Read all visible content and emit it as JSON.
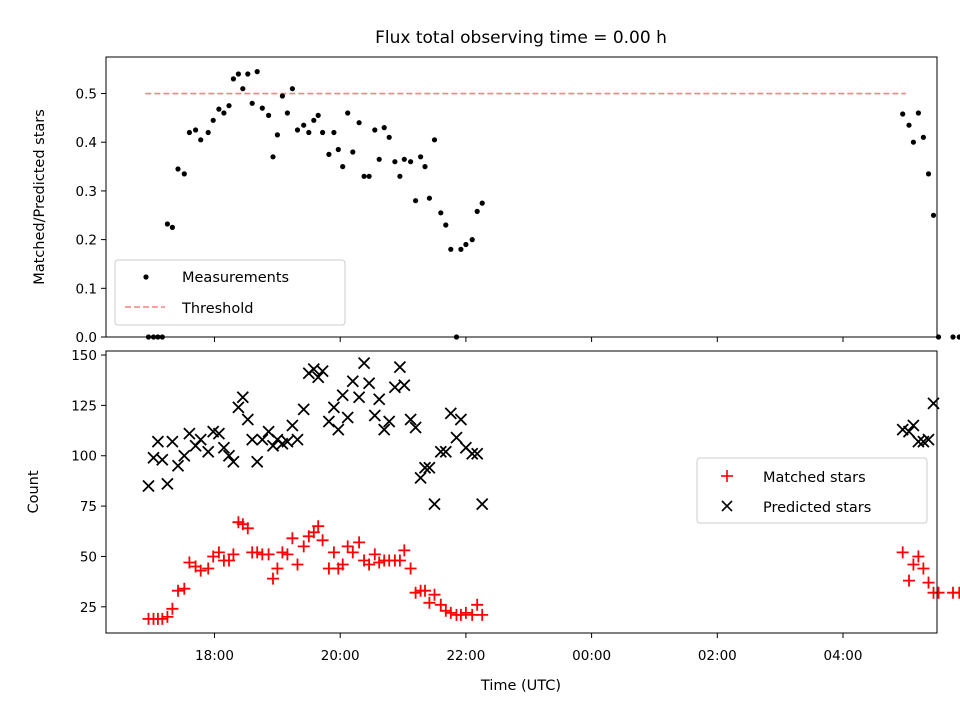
{
  "chart_data": [
    {
      "type": "scatter",
      "title": "Flux total observing time = 0.00 h",
      "xlabel": "",
      "ylabel": "Matched/Predicted stars",
      "ylim": [
        0,
        0.575
      ],
      "yticks": [
        "0.0",
        "0.1",
        "0.2",
        "0.3",
        "0.4",
        "0.5"
      ],
      "ytick_values": [
        0,
        0.1,
        0.2,
        0.3,
        0.4,
        0.5
      ],
      "x_axis": "hours since 00:00 UTC of the first night (from 17:00 to 29:00)",
      "legend_position": "lower-left",
      "legend": {
        "measurements": "Measurements",
        "threshold": "Threshold"
      },
      "threshold": {
        "value": 0.5,
        "x_range": [
          16.9,
          29.0
        ],
        "color": "#ff8080"
      },
      "measurements_color": "#000000",
      "series": [
        {
          "name": "Measurements",
          "points": [
            [
              16.95,
              0.0
            ],
            [
              17.03,
              0.0
            ],
            [
              17.1,
              0.0
            ],
            [
              17.17,
              0.0
            ],
            [
              17.25,
              0.232
            ],
            [
              17.33,
              0.225
            ],
            [
              17.42,
              0.345
            ],
            [
              17.52,
              0.335
            ],
            [
              17.6,
              0.42
            ],
            [
              17.7,
              0.425
            ],
            [
              17.78,
              0.405
            ],
            [
              17.9,
              0.42
            ],
            [
              17.98,
              0.445
            ],
            [
              18.07,
              0.468
            ],
            [
              18.15,
              0.46
            ],
            [
              18.23,
              0.475
            ],
            [
              18.3,
              0.53
            ],
            [
              18.38,
              0.54
            ],
            [
              18.45,
              0.51
            ],
            [
              18.53,
              0.54
            ],
            [
              18.6,
              0.48
            ],
            [
              18.68,
              0.545
            ],
            [
              18.76,
              0.47
            ],
            [
              18.86,
              0.455
            ],
            [
              18.93,
              0.37
            ],
            [
              19.0,
              0.415
            ],
            [
              19.08,
              0.495
            ],
            [
              19.16,
              0.46
            ],
            [
              19.24,
              0.51
            ],
            [
              19.32,
              0.425
            ],
            [
              19.42,
              0.435
            ],
            [
              19.5,
              0.42
            ],
            [
              19.58,
              0.445
            ],
            [
              19.65,
              0.455
            ],
            [
              19.72,
              0.42
            ],
            [
              19.82,
              0.375
            ],
            [
              19.9,
              0.42
            ],
            [
              19.97,
              0.385
            ],
            [
              20.04,
              0.35
            ],
            [
              20.12,
              0.46
            ],
            [
              20.2,
              0.38
            ],
            [
              20.3,
              0.44
            ],
            [
              20.38,
              0.33
            ],
            [
              20.46,
              0.33
            ],
            [
              20.55,
              0.425
            ],
            [
              20.62,
              0.365
            ],
            [
              20.7,
              0.43
            ],
            [
              20.78,
              0.41
            ],
            [
              20.87,
              0.36
            ],
            [
              20.95,
              0.33
            ],
            [
              21.02,
              0.365
            ],
            [
              21.12,
              0.36
            ],
            [
              21.2,
              0.28
            ],
            [
              21.28,
              0.37
            ],
            [
              21.35,
              0.35
            ],
            [
              21.42,
              0.285
            ],
            [
              21.5,
              0.405
            ],
            [
              21.6,
              0.255
            ],
            [
              21.68,
              0.23
            ],
            [
              21.76,
              0.18
            ],
            [
              21.85,
              0.0
            ],
            [
              21.92,
              0.18
            ],
            [
              22.0,
              0.19
            ],
            [
              22.1,
              0.2
            ],
            [
              22.18,
              0.258
            ],
            [
              22.26,
              0.275
            ],
            [
              28.95,
              0.458
            ],
            [
              29.05,
              0.435
            ],
            [
              29.12,
              0.4
            ],
            [
              29.2,
              0.46
            ],
            [
              29.28,
              0.41
            ],
            [
              29.36,
              0.335
            ],
            [
              29.44,
              0.25
            ],
            [
              29.52,
              0.0
            ],
            [
              29.75,
              0.0
            ],
            [
              29.85,
              0.0
            ],
            [
              29.95,
              0.0
            ],
            [
              30.05,
              0.0
            ],
            [
              30.1,
              0.0
            ]
          ]
        }
      ]
    },
    {
      "type": "scatter",
      "title": "",
      "xlabel": "Time (UTC)",
      "ylabel": "Count",
      "ylim": [
        12,
        152
      ],
      "yticks": [
        "25",
        "50",
        "75",
        "100",
        "125",
        "150"
      ],
      "ytick_values": [
        25,
        50,
        75,
        100,
        125,
        150
      ],
      "xticks": [
        "18:00",
        "20:00",
        "22:00",
        "00:00",
        "02:00",
        "04:00"
      ],
      "xtick_values": [
        18,
        20,
        22,
        24,
        26,
        28
      ],
      "x_axis": "hours since 00:00 UTC of the first night (from 17:00 to 29:00)",
      "legend_position": "center-right",
      "legend": {
        "matched": "Matched stars",
        "predicted": "Predicted stars"
      },
      "matched_color": "#ff0000",
      "predicted_color": "#000000",
      "series": [
        {
          "name": "Matched stars",
          "points": [
            [
              16.95,
              19
            ],
            [
              17.03,
              19
            ],
            [
              17.1,
              19
            ],
            [
              17.17,
              19
            ],
            [
              17.25,
              20
            ],
            [
              17.33,
              24
            ],
            [
              17.42,
              33
            ],
            [
              17.52,
              34
            ],
            [
              17.6,
              47
            ],
            [
              17.7,
              45
            ],
            [
              17.78,
              43
            ],
            [
              17.9,
              44
            ],
            [
              17.98,
              50
            ],
            [
              18.07,
              52
            ],
            [
              18.15,
              48
            ],
            [
              18.23,
              48
            ],
            [
              18.3,
              51
            ],
            [
              18.38,
              67
            ],
            [
              18.45,
              66
            ],
            [
              18.53,
              64
            ],
            [
              18.6,
              52
            ],
            [
              18.68,
              52
            ],
            [
              18.76,
              51
            ],
            [
              18.86,
              51
            ],
            [
              18.93,
              39
            ],
            [
              19.0,
              44
            ],
            [
              19.08,
              52
            ],
            [
              19.16,
              51
            ],
            [
              19.24,
              59
            ],
            [
              19.32,
              46
            ],
            [
              19.42,
              55
            ],
            [
              19.5,
              60
            ],
            [
              19.58,
              62
            ],
            [
              19.65,
              65
            ],
            [
              19.72,
              58
            ],
            [
              19.82,
              44
            ],
            [
              19.9,
              52
            ],
            [
              19.97,
              44
            ],
            [
              20.04,
              46
            ],
            [
              20.12,
              55
            ],
            [
              20.2,
              52
            ],
            [
              20.3,
              57
            ],
            [
              20.38,
              48
            ],
            [
              20.46,
              46
            ],
            [
              20.55,
              51
            ],
            [
              20.62,
              47
            ],
            [
              20.7,
              48
            ],
            [
              20.78,
              48
            ],
            [
              20.87,
              48
            ],
            [
              20.95,
              48
            ],
            [
              21.02,
              53
            ],
            [
              21.12,
              44
            ],
            [
              21.2,
              32
            ],
            [
              21.28,
              33
            ],
            [
              21.35,
              33
            ],
            [
              21.42,
              27
            ],
            [
              21.5,
              31
            ],
            [
              21.6,
              26
            ],
            [
              21.68,
              23
            ],
            [
              21.76,
              22
            ],
            [
              21.85,
              21
            ],
            [
              21.92,
              21
            ],
            [
              22.0,
              22
            ],
            [
              22.1,
              21
            ],
            [
              22.18,
              26
            ],
            [
              22.26,
              21
            ],
            [
              28.95,
              52
            ],
            [
              29.05,
              38
            ],
            [
              29.12,
              46
            ],
            [
              29.2,
              50
            ],
            [
              29.28,
              44
            ],
            [
              29.36,
              37
            ],
            [
              29.44,
              32
            ],
            [
              29.52,
              32
            ],
            [
              29.75,
              32
            ],
            [
              29.85,
              32
            ],
            [
              29.95,
              32
            ],
            [
              30.05,
              32
            ],
            [
              30.1,
              32
            ]
          ]
        },
        {
          "name": "Predicted stars",
          "points": [
            [
              16.95,
              85
            ],
            [
              17.03,
              99
            ],
            [
              17.1,
              107
            ],
            [
              17.17,
              98
            ],
            [
              17.25,
              86
            ],
            [
              17.33,
              107
            ],
            [
              17.42,
              95
            ],
            [
              17.52,
              100
            ],
            [
              17.6,
              111
            ],
            [
              17.7,
              105
            ],
            [
              17.78,
              108
            ],
            [
              17.9,
              102
            ],
            [
              17.98,
              112
            ],
            [
              18.07,
              111
            ],
            [
              18.15,
              104
            ],
            [
              18.23,
              100
            ],
            [
              18.3,
              97
            ],
            [
              18.38,
              124
            ],
            [
              18.45,
              129
            ],
            [
              18.53,
              118
            ],
            [
              18.6,
              108
            ],
            [
              18.68,
              97
            ],
            [
              18.76,
              108
            ],
            [
              18.86,
              112
            ],
            [
              18.93,
              105
            ],
            [
              19.0,
              108
            ],
            [
              19.08,
              106
            ],
            [
              19.16,
              107
            ],
            [
              19.24,
              115
            ],
            [
              19.32,
              108
            ],
            [
              19.42,
              123
            ],
            [
              19.5,
              141
            ],
            [
              19.58,
              143
            ],
            [
              19.65,
              139
            ],
            [
              19.72,
              142
            ],
            [
              19.82,
              117
            ],
            [
              19.9,
              124
            ],
            [
              19.97,
              113
            ],
            [
              20.04,
              130
            ],
            [
              20.12,
              119
            ],
            [
              20.2,
              137
            ],
            [
              20.3,
              129
            ],
            [
              20.38,
              146
            ],
            [
              20.46,
              136
            ],
            [
              20.55,
              120
            ],
            [
              20.62,
              128
            ],
            [
              20.7,
              113
            ],
            [
              20.78,
              117
            ],
            [
              20.87,
              134
            ],
            [
              20.95,
              144
            ],
            [
              21.02,
              135
            ],
            [
              21.12,
              118
            ],
            [
              21.2,
              114
            ],
            [
              21.28,
              89
            ],
            [
              21.35,
              94
            ],
            [
              21.42,
              94
            ],
            [
              21.5,
              76
            ],
            [
              21.6,
              102
            ],
            [
              21.68,
              102
            ],
            [
              21.76,
              121
            ],
            [
              21.85,
              109
            ],
            [
              21.92,
              118
            ],
            [
              22.0,
              104
            ],
            [
              22.1,
              101
            ],
            [
              22.18,
              101
            ],
            [
              22.26,
              76
            ],
            [
              28.95,
              113
            ],
            [
              29.05,
              112
            ],
            [
              29.12,
              115
            ],
            [
              29.2,
              107
            ],
            [
              29.28,
              107
            ],
            [
              29.36,
              108
            ],
            [
              29.44,
              126
            ]
          ]
        }
      ]
    }
  ]
}
